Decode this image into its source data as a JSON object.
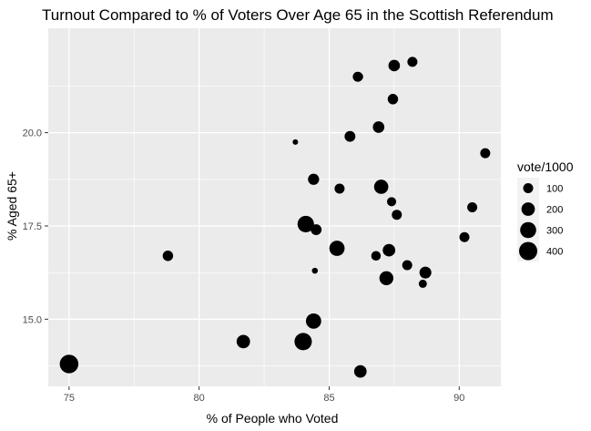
{
  "chart_data": {
    "type": "scatter",
    "title": "Turnout Compared to % of Voters Over Age 65 in the Scottish Referendum",
    "xlabel": "% of People who Voted",
    "ylabel": "% Aged 65+",
    "xlim": [
      74.2,
      91.6
    ],
    "ylim": [
      13.2,
      22.8
    ],
    "x_ticks": [
      75,
      80,
      85,
      90
    ],
    "y_ticks": [
      15.0,
      17.5,
      20.0
    ],
    "x_tick_labels": [
      "75",
      "80",
      "85",
      "90"
    ],
    "y_tick_labels": [
      "15.0",
      "17.5",
      "20.0"
    ],
    "grid": true,
    "size_legend": {
      "title": "vote/1000",
      "placement": "right",
      "entries": [
        {
          "label": "100",
          "value": 100
        },
        {
          "label": "200",
          "value": 200
        },
        {
          "label": "300",
          "value": 300
        },
        {
          "label": "400",
          "value": 400
        }
      ]
    },
    "points": [
      {
        "x": 75.0,
        "y": 13.8,
        "size": 420
      },
      {
        "x": 78.8,
        "y": 16.7,
        "size": 110
      },
      {
        "x": 81.7,
        "y": 14.4,
        "size": 200
      },
      {
        "x": 83.7,
        "y": 19.75,
        "size": 20
      },
      {
        "x": 84.0,
        "y": 14.4,
        "size": 360
      },
      {
        "x": 84.1,
        "y": 17.55,
        "size": 320
      },
      {
        "x": 84.4,
        "y": 18.75,
        "size": 130
      },
      {
        "x": 84.4,
        "y": 14.95,
        "size": 270
      },
      {
        "x": 84.45,
        "y": 16.3,
        "size": 25
      },
      {
        "x": 84.5,
        "y": 17.4,
        "size": 120
      },
      {
        "x": 85.3,
        "y": 16.9,
        "size": 270
      },
      {
        "x": 85.4,
        "y": 18.5,
        "size": 100
      },
      {
        "x": 85.8,
        "y": 19.9,
        "size": 120
      },
      {
        "x": 86.1,
        "y": 21.5,
        "size": 100
      },
      {
        "x": 86.15,
        "y": 21.5,
        "size": 60
      },
      {
        "x": 86.2,
        "y": 13.6,
        "size": 170
      },
      {
        "x": 86.8,
        "y": 16.7,
        "size": 90
      },
      {
        "x": 86.9,
        "y": 20.15,
        "size": 140
      },
      {
        "x": 87.0,
        "y": 18.55,
        "size": 230
      },
      {
        "x": 87.2,
        "y": 16.1,
        "size": 220
      },
      {
        "x": 87.3,
        "y": 16.85,
        "size": 170
      },
      {
        "x": 87.4,
        "y": 18.15,
        "size": 80
      },
      {
        "x": 87.45,
        "y": 20.9,
        "size": 110
      },
      {
        "x": 87.5,
        "y": 21.8,
        "size": 140
      },
      {
        "x": 87.6,
        "y": 17.8,
        "size": 100
      },
      {
        "x": 88.0,
        "y": 16.45,
        "size": 100
      },
      {
        "x": 88.2,
        "y": 21.9,
        "size": 100
      },
      {
        "x": 88.6,
        "y": 15.95,
        "size": 60
      },
      {
        "x": 88.7,
        "y": 16.25,
        "size": 150
      },
      {
        "x": 90.2,
        "y": 17.2,
        "size": 100
      },
      {
        "x": 90.5,
        "y": 18.0,
        "size": 100
      },
      {
        "x": 91.0,
        "y": 19.45,
        "size": 100
      }
    ]
  }
}
